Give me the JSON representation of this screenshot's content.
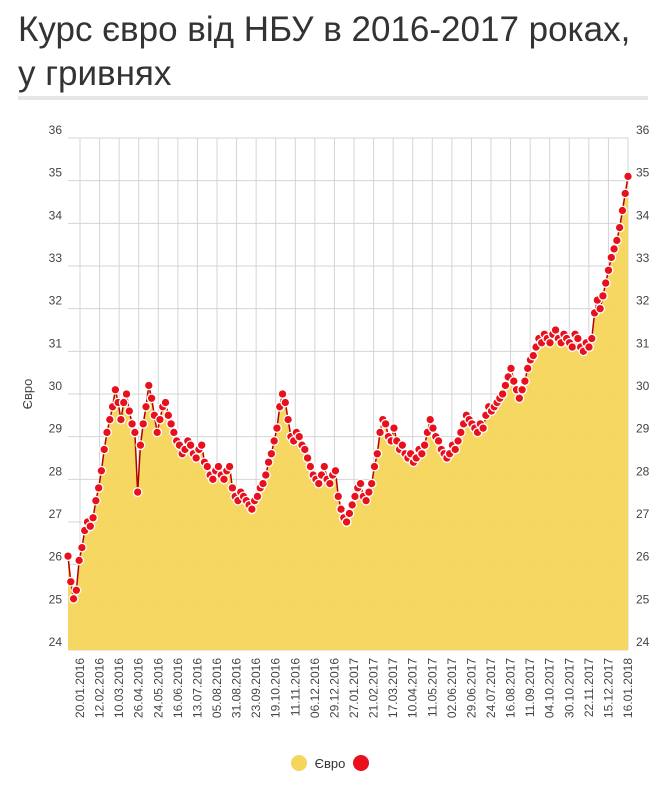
{
  "header": {
    "title": "Курс євро від НБУ в 2016-2017 роках, у гривнях"
  },
  "legend": {
    "items": [
      {
        "label": "Євро",
        "color": "#f5d55a"
      },
      {
        "label": "",
        "color": "#e8101c"
      }
    ]
  },
  "chart_data": {
    "type": "area",
    "title": "",
    "xlabel": "",
    "ylabel": "Євро",
    "ylim": [
      24,
      36
    ],
    "yticks": [
      "24",
      "25",
      "26",
      "27",
      "28",
      "29",
      "30",
      "31",
      "32",
      "33",
      "34",
      "35",
      "36"
    ],
    "y_axis_labels_right": true,
    "grid": true,
    "legend_position": "bottom",
    "x_tick_labels": [
      "20.01.2016",
      "12.02.2016",
      "10.03.2016",
      "26.04.2016",
      "24.05.2016",
      "16.06.2016",
      "13.07.2016",
      "05.08.2016",
      "31.08.2016",
      "23.09.2016",
      "19.10.2016",
      "11.11.2016",
      "06.12.2016",
      "29.12.2016",
      "27.01.2017",
      "21.02.2017",
      "17.03.2017",
      "10.04.2017",
      "11.05.2017",
      "02.06.2017",
      "29.06.2017",
      "24.07.2017",
      "16.08.2017",
      "11.09.2017",
      "04.10.2017",
      "30.10.2017",
      "22.11.2017",
      "15.12.2017",
      "16.01.2018"
    ],
    "series": [
      {
        "name": "",
        "fill_color": "#f5d55a",
        "line_color": "#b30000",
        "marker_color": "#e8101c",
        "values": [
          26.2,
          25.6,
          25.2,
          25.4,
          26.1,
          26.4,
          26.8,
          27.0,
          26.9,
          27.1,
          27.5,
          27.8,
          28.2,
          28.7,
          29.1,
          29.4,
          29.7,
          30.1,
          29.8,
          29.4,
          29.8,
          30.0,
          29.6,
          29.3,
          29.1,
          27.7,
          28.8,
          29.3,
          29.7,
          30.2,
          29.9,
          29.5,
          29.1,
          29.4,
          29.7,
          29.8,
          29.5,
          29.3,
          29.1,
          28.9,
          28.8,
          28.6,
          28.7,
          28.9,
          28.8,
          28.6,
          28.5,
          28.7,
          28.8,
          28.4,
          28.3,
          28.1,
          28.0,
          28.2,
          28.3,
          28.1,
          28.0,
          28.2,
          28.3,
          27.8,
          27.6,
          27.5,
          27.7,
          27.6,
          27.5,
          27.4,
          27.3,
          27.5,
          27.6,
          27.8,
          27.9,
          28.1,
          28.4,
          28.6,
          28.9,
          29.2,
          29.7,
          30.0,
          29.8,
          29.4,
          29.0,
          28.9,
          29.1,
          29.0,
          28.8,
          28.7,
          28.5,
          28.3,
          28.1,
          28.0,
          27.9,
          28.1,
          28.3,
          28.0,
          27.9,
          28.1,
          28.2,
          27.6,
          27.3,
          27.1,
          27.0,
          27.2,
          27.4,
          27.6,
          27.8,
          27.9,
          27.6,
          27.5,
          27.7,
          27.9,
          28.3,
          28.6,
          29.1,
          29.4,
          29.3,
          29.0,
          28.9,
          29.2,
          28.9,
          28.7,
          28.8,
          28.6,
          28.5,
          28.6,
          28.4,
          28.5,
          28.7,
          28.6,
          28.8,
          29.1,
          29.4,
          29.2,
          29.0,
          28.9,
          28.7,
          28.6,
          28.5,
          28.6,
          28.8,
          28.7,
          28.9,
          29.1,
          29.3,
          29.5,
          29.4,
          29.3,
          29.2,
          29.1,
          29.3,
          29.2,
          29.5,
          29.7,
          29.6,
          29.7,
          29.8,
          29.9,
          30.0,
          30.2,
          30.4,
          30.6,
          30.3,
          30.1,
          29.9,
          30.1,
          30.3,
          30.6,
          30.8,
          30.9,
          31.1,
          31.3,
          31.2,
          31.4,
          31.3,
          31.2,
          31.4,
          31.5,
          31.3,
          31.2,
          31.4,
          31.3,
          31.2,
          31.1,
          31.4,
          31.3,
          31.1,
          31.0,
          31.2,
          31.1,
          31.3,
          31.9,
          32.2,
          32.0,
          32.3,
          32.6,
          32.9,
          33.2,
          33.4,
          33.6,
          33.9,
          34.3,
          34.7,
          35.1
        ]
      }
    ]
  }
}
